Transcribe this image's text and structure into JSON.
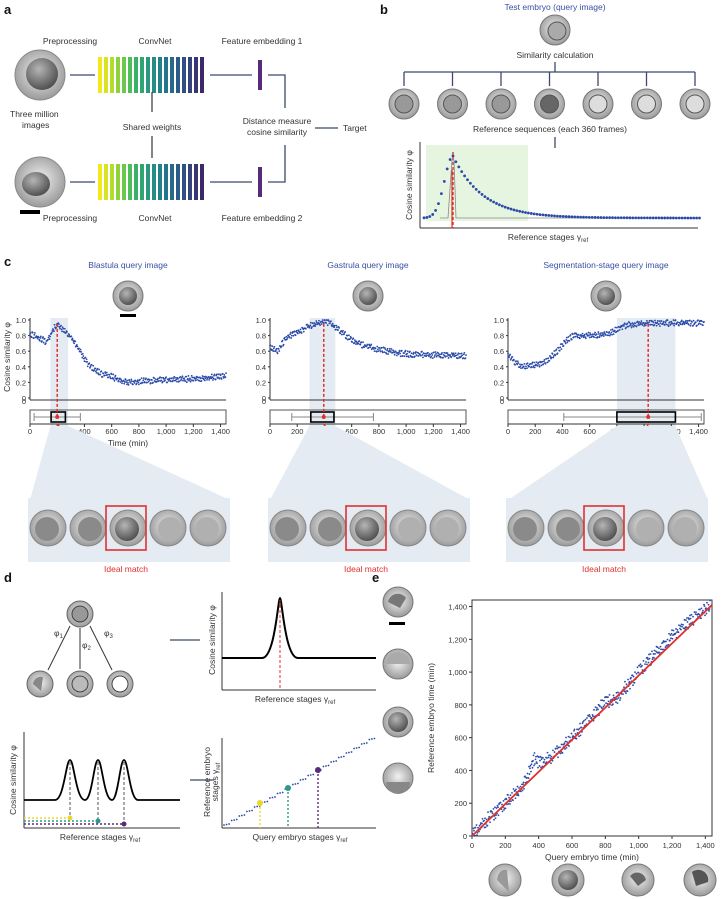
{
  "panels": {
    "a": "a",
    "b": "b",
    "c": "c",
    "d": "d",
    "e": "e"
  },
  "panel_a": {
    "preprocessing_top": "Preprocessing",
    "convnet_top": "ConvNet",
    "embedding1": "Feature embedding 1",
    "three_million": "Three million",
    "images": "images",
    "shared_weights": "Shared weights",
    "distance_measure": "Distance measure",
    "cosine_similarity": "cosine similarity",
    "target": "Target",
    "preprocessing_bottom": "Preprocessing",
    "convnet_bottom": "ConvNet",
    "embedding2": "Feature embedding 2"
  },
  "panel_b": {
    "test_embryo": "Test embryo (query image)",
    "similarity_calc": "Similarity calculation",
    "reference_sequences": "Reference sequences (each 360 frames)",
    "ylabel": "Cosine similarity φ",
    "xlabel": "Reference stages γ",
    "xlabel_sub": "ref"
  },
  "panel_c": {
    "plots": [
      {
        "title": "Blastula query image",
        "peak": 200,
        "shade": [
          150,
          280
        ],
        "box": [
          155,
          260
        ],
        "whisker": [
          30,
          370
        ],
        "ideal": "Ideal match"
      },
      {
        "title": "Gastrula query image",
        "peak": 395,
        "shade": [
          290,
          480
        ],
        "box": [
          300,
          470
        ],
        "whisker": [
          160,
          760
        ],
        "ideal": "Ideal match"
      },
      {
        "title": "Segmentation-stage query image",
        "peak": 1030,
        "shade": [
          800,
          1230
        ],
        "box": [
          800,
          1230
        ],
        "whisker": [
          410,
          1420
        ],
        "ideal": "Ideal match"
      }
    ],
    "ylabel": "Cosine similarity φ",
    "xlabel": "Time (min)",
    "yticks": [
      "0",
      "0.2",
      "0.4",
      "0.6",
      "0.8",
      "1.0"
    ],
    "xticks": [
      "0",
      "200",
      "400",
      "600",
      "800",
      "1,000",
      "1,200",
      "1,400"
    ]
  },
  "panel_d": {
    "phi1": "φ",
    "phi1_sub": "1",
    "phi2": "φ",
    "phi2_sub": "2",
    "phi3": "φ",
    "phi3_sub": "3",
    "top_ylabel": "Cosine similarity φ",
    "top_xlabel": "Reference stages γ",
    "top_xlabel_sub": "ref",
    "bot_ylabel": "Cosine similarity φ",
    "bot_xlabel": "Reference stages γ",
    "bot_xlabel_sub": "ref",
    "right_ylabel1": "Reference embryo",
    "right_ylabel2": "stages γ",
    "right_ylabel2_sub": "ref",
    "right_xlabel": "Query embryo stages γ",
    "right_xlabel_sub": "ref"
  },
  "chart_data": [
    {
      "type": "scatter",
      "title": "Blastula query image",
      "xlabel": "Time (min)",
      "ylabel": "Cosine similarity φ",
      "xlim": [
        0,
        1440
      ],
      "ylim": [
        0,
        1.0
      ],
      "x": [
        0,
        60,
        120,
        180,
        200,
        240,
        300,
        360,
        420,
        480,
        540,
        600,
        660,
        720,
        780,
        840,
        900,
        960,
        1020,
        1080,
        1140,
        1200,
        1260,
        1320,
        1380,
        1440
      ],
      "y": [
        0.82,
        0.78,
        0.72,
        0.9,
        0.93,
        0.88,
        0.78,
        0.62,
        0.45,
        0.35,
        0.3,
        0.28,
        0.22,
        0.2,
        0.21,
        0.22,
        0.22,
        0.23,
        0.23,
        0.24,
        0.24,
        0.25,
        0.25,
        0.26,
        0.27,
        0.28
      ]
    },
    {
      "type": "scatter",
      "title": "Gastrula query image",
      "xlabel": "Time (min)",
      "ylabel": "Cosine similarity φ",
      "xlim": [
        0,
        1440
      ],
      "ylim": [
        0,
        1.0
      ],
      "x": [
        0,
        60,
        120,
        180,
        240,
        300,
        360,
        400,
        440,
        500,
        560,
        620,
        680,
        740,
        800,
        860,
        920,
        980,
        1040,
        1100,
        1160,
        1220,
        1280,
        1340,
        1400,
        1440
      ],
      "y": [
        0.65,
        0.6,
        0.78,
        0.82,
        0.88,
        0.93,
        0.96,
        0.98,
        0.96,
        0.88,
        0.8,
        0.72,
        0.68,
        0.65,
        0.62,
        0.6,
        0.58,
        0.57,
        0.56,
        0.56,
        0.55,
        0.55,
        0.55,
        0.55,
        0.54,
        0.54
      ]
    },
    {
      "type": "scatter",
      "title": "Segmentation-stage query image",
      "xlabel": "Time (min)",
      "ylabel": "Cosine similarity φ",
      "xlim": [
        0,
        1440
      ],
      "ylim": [
        0,
        1.0
      ],
      "x": [
        0,
        60,
        120,
        180,
        240,
        300,
        360,
        420,
        480,
        540,
        600,
        660,
        720,
        780,
        840,
        900,
        960,
        1020,
        1080,
        1140,
        1200,
        1260,
        1320,
        1380,
        1440
      ],
      "y": [
        0.55,
        0.45,
        0.4,
        0.42,
        0.44,
        0.5,
        0.6,
        0.72,
        0.8,
        0.8,
        0.8,
        0.81,
        0.82,
        0.86,
        0.92,
        0.94,
        0.95,
        0.96,
        0.96,
        0.96,
        0.96,
        0.96,
        0.96,
        0.96,
        0.96
      ]
    },
    {
      "type": "scatter",
      "title": "",
      "xlabel": "Query embryo time (min)",
      "ylabel": "Reference embryo time (min)",
      "xlim": [
        0,
        1440
      ],
      "ylim": [
        0,
        1440
      ],
      "xticks": [
        "0",
        "200",
        "400",
        "600",
        "800",
        "1,000",
        "1,200",
        "1,400"
      ],
      "yticks": [
        "0",
        "200",
        "400",
        "600",
        "800",
        "1,000",
        "1,200",
        "1,400"
      ],
      "x": [
        0,
        100,
        200,
        300,
        380,
        400,
        480,
        560,
        600,
        700,
        800,
        860,
        900,
        1000,
        1100,
        1200,
        1300,
        1400,
        1430
      ],
      "y": [
        0,
        110,
        200,
        300,
        480,
        450,
        480,
        560,
        600,
        700,
        820,
        830,
        880,
        1000,
        1110,
        1220,
        1300,
        1380,
        1400
      ],
      "fit_line": [
        [
          0,
          0
        ],
        [
          1440,
          1410
        ]
      ]
    }
  ]
}
